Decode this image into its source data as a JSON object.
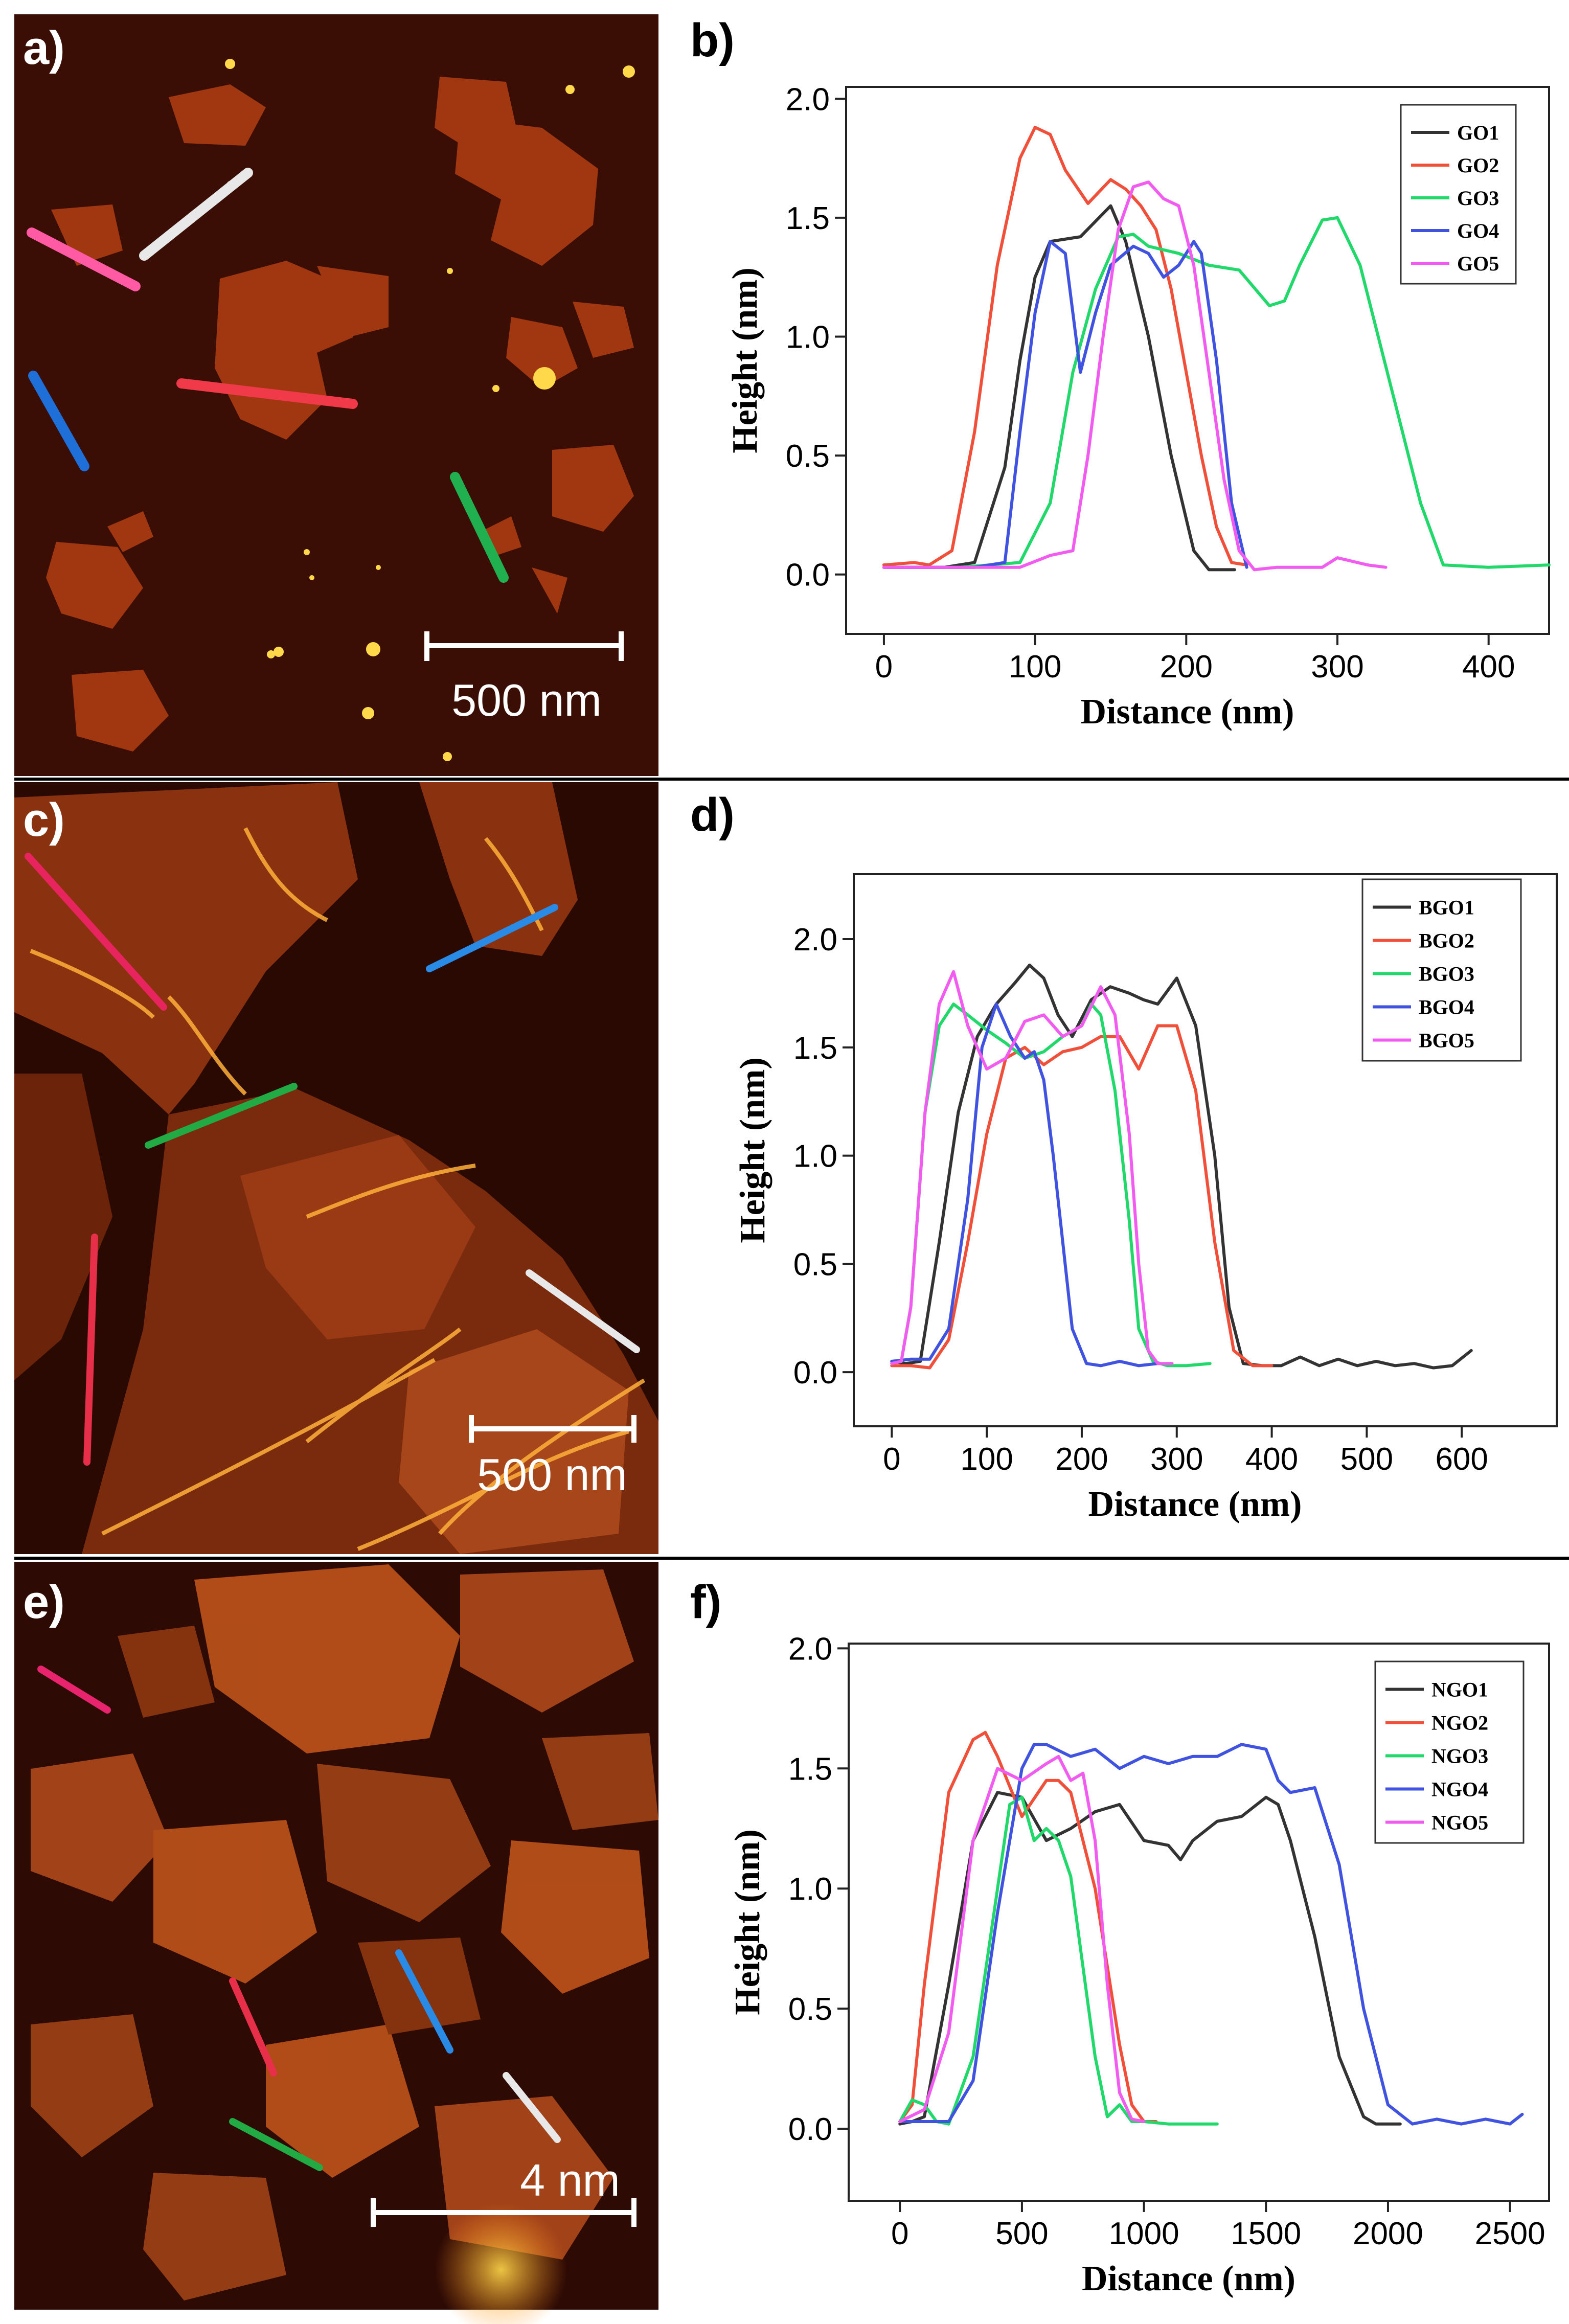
{
  "colors": {
    "black": "#333333",
    "red": "#f0503a",
    "green": "#21d86a",
    "blue": "#4053e0",
    "magenta": "#f25bf0",
    "white": "#e8e8e8"
  },
  "afm": [
    {
      "label": "a)",
      "scale_text": "500 nm",
      "bg": "#3b0e05"
    },
    {
      "label": "c)",
      "scale_text": "500 nm",
      "bg": "#2a0903"
    },
    {
      "label": "e)",
      "scale_text": "4 nm",
      "bg": "#2d0a04"
    }
  ],
  "chart_data": [
    {
      "type": "line",
      "panel_label": "b)",
      "xlabel": "Distance (nm)",
      "ylabel": "Height (nm)",
      "xlim": [
        -25,
        440
      ],
      "ylim": [
        -0.25,
        2.05
      ],
      "xticks": [
        0,
        100,
        200,
        300,
        400
      ],
      "xtick_labels": [
        "0",
        "100",
        "200",
        "300",
        "400"
      ],
      "yticks": [
        0.0,
        0.5,
        1.0,
        1.5,
        2.0
      ],
      "ytick_labels": [
        "0.0",
        "0.5",
        "1.0",
        "1.5",
        "2.0"
      ],
      "series": [
        {
          "name": "GO1",
          "color": "#333333",
          "x": [
            0,
            40,
            60,
            80,
            90,
            100,
            110,
            130,
            150,
            160,
            175,
            190,
            205,
            215,
            232
          ],
          "y": [
            0.03,
            0.03,
            0.05,
            0.45,
            0.9,
            1.25,
            1.4,
            1.42,
            1.55,
            1.4,
            1.0,
            0.5,
            0.1,
            0.02,
            0.02
          ]
        },
        {
          "name": "GO2",
          "color": "#f0503a",
          "x": [
            0,
            20,
            30,
            45,
            60,
            75,
            90,
            100,
            110,
            120,
            135,
            150,
            160,
            170,
            180,
            190,
            200,
            210,
            220,
            230,
            240
          ],
          "y": [
            0.04,
            0.05,
            0.04,
            0.1,
            0.6,
            1.3,
            1.75,
            1.88,
            1.85,
            1.7,
            1.56,
            1.66,
            1.62,
            1.55,
            1.45,
            1.2,
            0.85,
            0.5,
            0.2,
            0.05,
            0.04
          ]
        },
        {
          "name": "GO3",
          "color": "#21d86a",
          "x": [
            0,
            50,
            90,
            110,
            125,
            140,
            155,
            165,
            175,
            195,
            215,
            235,
            255,
            265,
            275,
            290,
            300,
            315,
            335,
            355,
            370,
            400,
            440
          ],
          "y": [
            0.03,
            0.03,
            0.05,
            0.3,
            0.85,
            1.2,
            1.42,
            1.43,
            1.38,
            1.35,
            1.3,
            1.28,
            1.13,
            1.15,
            1.3,
            1.49,
            1.5,
            1.3,
            0.8,
            0.3,
            0.04,
            0.03,
            0.04
          ]
        },
        {
          "name": "GO4",
          "color": "#4053e0",
          "x": [
            0,
            60,
            80,
            90,
            100,
            110,
            120,
            130,
            140,
            150,
            165,
            175,
            185,
            195,
            205,
            210,
            220,
            230,
            240
          ],
          "y": [
            0.03,
            0.03,
            0.05,
            0.6,
            1.1,
            1.4,
            1.35,
            0.85,
            1.1,
            1.3,
            1.38,
            1.35,
            1.25,
            1.3,
            1.4,
            1.35,
            0.9,
            0.3,
            0.03
          ]
        },
        {
          "name": "GO5",
          "color": "#f25bf0",
          "x": [
            0,
            90,
            110,
            125,
            135,
            145,
            155,
            165,
            175,
            185,
            195,
            205,
            215,
            225,
            235,
            245,
            260,
            290,
            300,
            320,
            332
          ],
          "y": [
            0.03,
            0.03,
            0.08,
            0.1,
            0.5,
            1.0,
            1.45,
            1.63,
            1.65,
            1.58,
            1.55,
            1.3,
            0.85,
            0.4,
            0.1,
            0.02,
            0.03,
            0.03,
            0.07,
            0.04,
            0.03
          ]
        }
      ]
    },
    {
      "type": "line",
      "panel_label": "d)",
      "xlabel": "Distance (nm)",
      "ylabel": "Height (nm)",
      "xlim": [
        -40,
        700
      ],
      "ylim": [
        -0.25,
        2.3
      ],
      "xticks": [
        0,
        100,
        200,
        300,
        400,
        500,
        600
      ],
      "xtick_labels": [
        "0",
        "100",
        "200",
        "300",
        "400",
        "500",
        "600"
      ],
      "yticks": [
        0.0,
        0.5,
        1.0,
        1.5,
        2.0
      ],
      "ytick_labels": [
        "0.0",
        "0.5",
        "1.0",
        "1.5",
        "2.0"
      ],
      "series": [
        {
          "name": "BGO1",
          "color": "#333333",
          "x": [
            0,
            15,
            30,
            50,
            70,
            90,
            110,
            130,
            145,
            160,
            175,
            190,
            210,
            230,
            250,
            265,
            280,
            300,
            320,
            340,
            355,
            370,
            390,
            410,
            430,
            450,
            470,
            490,
            510,
            530,
            550,
            570,
            590,
            610
          ],
          "y": [
            0.05,
            0.04,
            0.05,
            0.6,
            1.2,
            1.55,
            1.7,
            1.8,
            1.88,
            1.82,
            1.65,
            1.55,
            1.72,
            1.78,
            1.75,
            1.72,
            1.7,
            1.82,
            1.6,
            1.0,
            0.3,
            0.04,
            0.03,
            0.03,
            0.07,
            0.03,
            0.06,
            0.03,
            0.05,
            0.03,
            0.04,
            0.02,
            0.03,
            0.1
          ]
        },
        {
          "name": "BGO2",
          "color": "#f0503a",
          "x": [
            0,
            20,
            40,
            60,
            80,
            100,
            120,
            140,
            160,
            180,
            200,
            220,
            240,
            260,
            280,
            300,
            320,
            340,
            360,
            380,
            400
          ],
          "y": [
            0.03,
            0.03,
            0.02,
            0.15,
            0.6,
            1.1,
            1.45,
            1.5,
            1.42,
            1.48,
            1.5,
            1.55,
            1.55,
            1.4,
            1.6,
            1.6,
            1.3,
            0.6,
            0.1,
            0.03,
            0.03
          ]
        },
        {
          "name": "BGO3",
          "color": "#21d86a",
          "x": [
            0,
            10,
            20,
            35,
            50,
            65,
            80,
            100,
            120,
            140,
            160,
            180,
            200,
            210,
            220,
            235,
            250,
            260,
            275,
            290,
            310,
            335
          ],
          "y": [
            0.04,
            0.05,
            0.3,
            1.2,
            1.6,
            1.7,
            1.65,
            1.58,
            1.52,
            1.45,
            1.48,
            1.55,
            1.6,
            1.7,
            1.65,
            1.3,
            0.7,
            0.2,
            0.05,
            0.03,
            0.03,
            0.04
          ]
        },
        {
          "name": "BGO4",
          "color": "#4053e0",
          "x": [
            0,
            20,
            40,
            60,
            80,
            95,
            110,
            125,
            140,
            150,
            160,
            170,
            180,
            190,
            205,
            220,
            240,
            260,
            280
          ],
          "y": [
            0.05,
            0.06,
            0.06,
            0.2,
            0.8,
            1.5,
            1.7,
            1.55,
            1.45,
            1.48,
            1.35,
            1.0,
            0.6,
            0.2,
            0.04,
            0.03,
            0.05,
            0.03,
            0.04
          ]
        },
        {
          "name": "BGO5",
          "color": "#f25bf0",
          "x": [
            0,
            10,
            20,
            35,
            50,
            65,
            80,
            100,
            120,
            140,
            160,
            180,
            200,
            220,
            235,
            250,
            260,
            270,
            280,
            295
          ],
          "y": [
            0.04,
            0.05,
            0.3,
            1.2,
            1.7,
            1.85,
            1.6,
            1.4,
            1.45,
            1.62,
            1.65,
            1.55,
            1.6,
            1.78,
            1.65,
            1.1,
            0.5,
            0.1,
            0.04,
            0.04
          ]
        }
      ]
    },
    {
      "type": "line",
      "panel_label": "f)",
      "xlabel": "Distance (nm)",
      "ylabel": "Height (nm)",
      "xlim": [
        -210,
        2660
      ],
      "ylim": [
        -0.3,
        2.02
      ],
      "xticks": [
        0,
        500,
        1000,
        1500,
        2000,
        2500
      ],
      "xtick_labels": [
        "0",
        "500",
        "1000",
        "1500",
        "2000",
        "2500"
      ],
      "yticks": [
        0.0,
        0.5,
        1.0,
        1.5,
        2.0
      ],
      "ytick_labels": [
        "0.0",
        "0.5",
        "1.0",
        "1.5",
        "2.0"
      ],
      "series": [
        {
          "name": "NGO1",
          "color": "#333333",
          "x": [
            0,
            50,
            100,
            200,
            300,
            400,
            500,
            600,
            700,
            800,
            900,
            1000,
            1100,
            1150,
            1200,
            1300,
            1400,
            1500,
            1550,
            1600,
            1700,
            1800,
            1900,
            1950,
            2050
          ],
          "y": [
            0.02,
            0.03,
            0.05,
            0.6,
            1.2,
            1.4,
            1.38,
            1.2,
            1.25,
            1.32,
            1.35,
            1.2,
            1.18,
            1.12,
            1.2,
            1.28,
            1.3,
            1.38,
            1.35,
            1.2,
            0.8,
            0.3,
            0.05,
            0.02,
            0.02
          ]
        },
        {
          "name": "NGO2",
          "color": "#f0503a",
          "x": [
            0,
            50,
            100,
            200,
            300,
            350,
            400,
            500,
            600,
            650,
            700,
            800,
            900,
            950,
            1000,
            1050
          ],
          "y": [
            0.03,
            0.1,
            0.6,
            1.4,
            1.62,
            1.65,
            1.55,
            1.3,
            1.45,
            1.45,
            1.4,
            1.0,
            0.35,
            0.1,
            0.03,
            0.03
          ]
        },
        {
          "name": "NGO3",
          "color": "#21d86a",
          "x": [
            0,
            50,
            100,
            150,
            200,
            300,
            400,
            450,
            500,
            550,
            600,
            650,
            700,
            800,
            850,
            900,
            950,
            1000,
            1100,
            1300
          ],
          "y": [
            0.03,
            0.12,
            0.1,
            0.03,
            0.02,
            0.3,
            1.0,
            1.35,
            1.38,
            1.2,
            1.25,
            1.2,
            1.05,
            0.3,
            0.05,
            0.1,
            0.03,
            0.03,
            0.02,
            0.02
          ]
        },
        {
          "name": "NGO4",
          "color": "#4053e0",
          "x": [
            0,
            200,
            300,
            400,
            500,
            550,
            600,
            700,
            800,
            900,
            1000,
            1100,
            1200,
            1300,
            1400,
            1500,
            1550,
            1600,
            1700,
            1800,
            1900,
            2000,
            2100,
            2200,
            2300,
            2400,
            2500,
            2550
          ],
          "y": [
            0.03,
            0.03,
            0.2,
            0.9,
            1.5,
            1.6,
            1.6,
            1.55,
            1.58,
            1.5,
            1.55,
            1.52,
            1.55,
            1.55,
            1.6,
            1.58,
            1.45,
            1.4,
            1.42,
            1.1,
            0.5,
            0.1,
            0.02,
            0.04,
            0.02,
            0.04,
            0.02,
            0.06
          ]
        },
        {
          "name": "NGO5",
          "color": "#f25bf0",
          "x": [
            0,
            100,
            200,
            300,
            400,
            500,
            600,
            650,
            700,
            750,
            800,
            850,
            900,
            950,
            1000
          ],
          "y": [
            0.03,
            0.08,
            0.4,
            1.2,
            1.5,
            1.45,
            1.52,
            1.55,
            1.45,
            1.48,
            1.2,
            0.6,
            0.15,
            0.04,
            0.03
          ]
        }
      ]
    }
  ]
}
